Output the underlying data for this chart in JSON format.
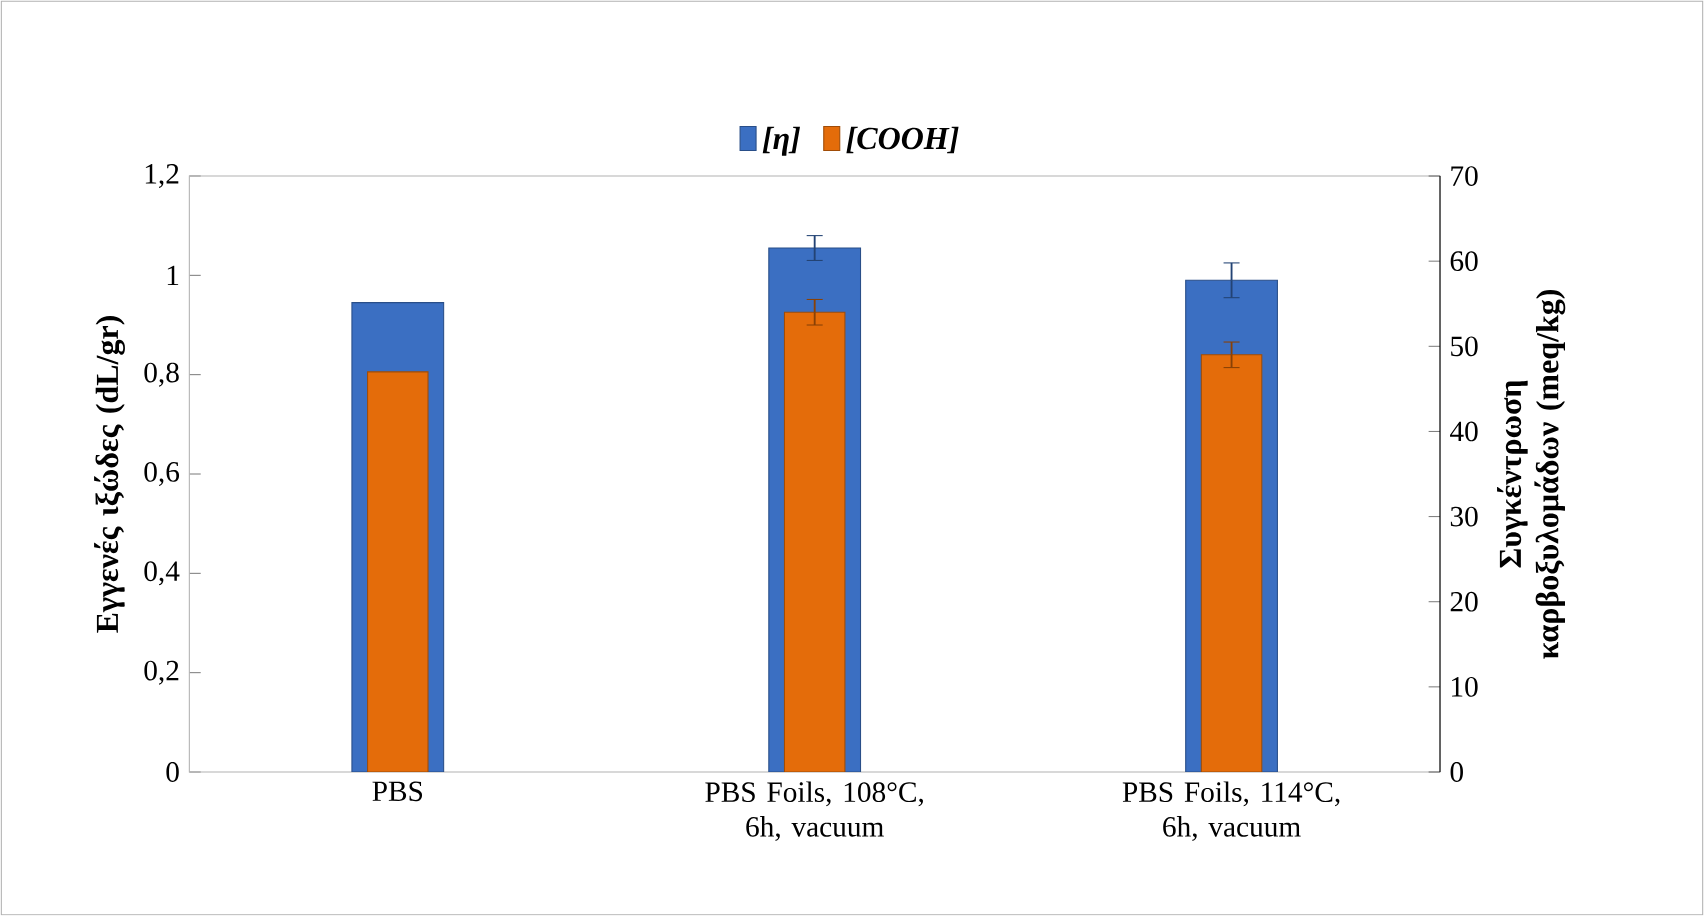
{
  "chart_data": {
    "type": "bar",
    "categories": [
      "PBS",
      "PBS Foils, 108°C, 6h, vacuum",
      "PBS Foils, 114°C, 6h, vacuum"
    ],
    "series": [
      {
        "name": "[η]",
        "color": "#3b6fc2",
        "values": [
          0.945,
          1.055,
          0.99
        ],
        "errors": [
          null,
          0.025,
          0.035
        ]
      },
      {
        "name": "[COOH]",
        "color": "#e46c0a",
        "axis": "y2",
        "values": [
          47,
          54,
          49
        ],
        "errors": [
          null,
          1.5,
          1.5
        ]
      }
    ],
    "ylabel": "Εγγενές ιξώδες (dL/gr)",
    "y2label": "Συγκέντρωση καρβοξυλομάδων (meq/kg)",
    "ylim": [
      0,
      1.2
    ],
    "yticks": [
      0,
      {
        "value": 0.2,
        "label": "0,2"
      },
      {
        "value": 0.4,
        "label": "0,4"
      },
      {
        "value": 0.6,
        "label": "0,6"
      },
      {
        "value": 0.8,
        "label": "0,8"
      },
      1,
      {
        "value": 1.2,
        "label": "1,2"
      }
    ],
    "y2lim": [
      0,
      70
    ],
    "y2ticks": [
      0,
      10,
      20,
      30,
      40,
      50,
      60,
      70
    ],
    "legend": "top"
  }
}
